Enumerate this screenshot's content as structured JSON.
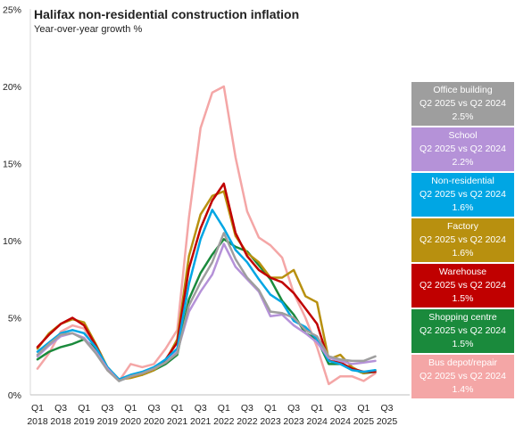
{
  "chart_data": {
    "type": "line",
    "title": "Halifax non-residential  construction inflation",
    "subtitle": "Year-over-year  growth %",
    "ylim": [
      0,
      25
    ],
    "yticks": [
      {
        "value": 0,
        "label": "0%"
      },
      {
        "value": 5,
        "label": "5%"
      },
      {
        "value": 10,
        "label": "10%"
      },
      {
        "value": 15,
        "label": "15%"
      },
      {
        "value": 20,
        "label": "20%"
      },
      {
        "value": 25,
        "label": "25%"
      }
    ],
    "xticks": [
      {
        "index": 0,
        "quarter": "Q1",
        "year": "2018"
      },
      {
        "index": 2,
        "quarter": "Q3",
        "year": "2018"
      },
      {
        "index": 4,
        "quarter": "Q1",
        "year": "2019"
      },
      {
        "index": 6,
        "quarter": "Q3",
        "year": "2019"
      },
      {
        "index": 8,
        "quarter": "Q1",
        "year": "2020"
      },
      {
        "index": 10,
        "quarter": "Q3",
        "year": "2020"
      },
      {
        "index": 12,
        "quarter": "Q1",
        "year": "2021"
      },
      {
        "index": 14,
        "quarter": "Q3",
        "year": "2021"
      },
      {
        "index": 16,
        "quarter": "Q1",
        "year": "2022"
      },
      {
        "index": 18,
        "quarter": "Q3",
        "year": "2022"
      },
      {
        "index": 20,
        "quarter": "Q1",
        "year": "2023"
      },
      {
        "index": 22,
        "quarter": "Q3",
        "year": "2023"
      },
      {
        "index": 24,
        "quarter": "Q1",
        "year": "2024"
      },
      {
        "index": 26,
        "quarter": "Q3",
        "year": "2024"
      },
      {
        "index": 28,
        "quarter": "Q1",
        "year": "2025"
      },
      {
        "index": 30,
        "quarter": "Q3",
        "year": "2025"
      }
    ],
    "x": [
      "Q1 2018",
      "Q2 2018",
      "Q3 2018",
      "Q4 2018",
      "Q1 2019",
      "Q2 2019",
      "Q3 2019",
      "Q4 2019",
      "Q1 2020",
      "Q2 2020",
      "Q3 2020",
      "Q4 2020",
      "Q1 2021",
      "Q2 2021",
      "Q3 2021",
      "Q4 2021",
      "Q1 2022",
      "Q2 2022",
      "Q3 2022",
      "Q4 2022",
      "Q1 2023",
      "Q2 2023",
      "Q3 2023",
      "Q4 2023",
      "Q1 2024",
      "Q2 2024",
      "Q3 2024",
      "Q4 2024",
      "Q1 2025",
      "Q2 2025"
    ],
    "grid": false,
    "legend_position": "right",
    "series": [
      {
        "name": "Office building",
        "legend_line2": "Q2 2025 vs Q2 2024",
        "legend_value": "2.5%",
        "color": "#9e9e9e",
        "values": [
          2.6,
          3.3,
          3.9,
          4.0,
          3.6,
          2.7,
          1.6,
          0.9,
          1.2,
          1.4,
          1.7,
          2.1,
          2.7,
          5.8,
          7.3,
          8.6,
          10.5,
          8.8,
          7.6,
          6.8,
          5.4,
          5.3,
          5.0,
          4.2,
          3.8,
          2.5,
          2.3,
          2.2,
          2.2,
          2.5
        ]
      },
      {
        "name": "School",
        "legend_line2": "Q2 2025 vs Q2 2024",
        "legend_value": "2.2%",
        "color": "#b592d8",
        "values": [
          2.5,
          3.2,
          3.8,
          4.0,
          3.7,
          2.8,
          1.7,
          0.9,
          1.2,
          1.4,
          1.7,
          2.1,
          2.8,
          5.4,
          6.7,
          7.8,
          9.8,
          8.3,
          7.5,
          6.7,
          5.1,
          5.2,
          4.5,
          4.0,
          3.4,
          2.4,
          2.2,
          2.0,
          2.1,
          2.2
        ]
      },
      {
        "name": "Non-residential",
        "legend_line2": "Q2 2025 vs Q2 2024",
        "legend_value": "1.6%",
        "color": "#00a6e4",
        "values": [
          2.8,
          3.4,
          4.0,
          4.2,
          4.0,
          3.1,
          1.8,
          1.0,
          1.3,
          1.5,
          1.8,
          2.3,
          3.0,
          7.2,
          10.1,
          12.0,
          10.8,
          9.4,
          8.6,
          7.5,
          6.5,
          6.0,
          4.8,
          4.4,
          3.6,
          2.2,
          2.0,
          1.6,
          1.5,
          1.6
        ]
      },
      {
        "name": "Factory",
        "legend_line2": "Q2 2025 vs Q2 2024",
        "legend_value": "1.6%",
        "color": "#b8900f",
        "values": [
          3.0,
          4.0,
          4.6,
          4.9,
          4.7,
          3.3,
          1.8,
          1.0,
          1.1,
          1.3,
          1.6,
          2.2,
          3.6,
          9.0,
          11.7,
          12.9,
          13.2,
          10.3,
          9.2,
          8.6,
          7.6,
          7.6,
          8.1,
          6.4,
          6.0,
          2.3,
          2.6,
          1.8,
          1.4,
          1.6
        ]
      },
      {
        "name": "Warehouse",
        "legend_line2": "Q2 2025 vs Q2 2024",
        "legend_value": "1.5%",
        "color": "#c00000",
        "values": [
          3.1,
          3.9,
          4.6,
          5.0,
          4.5,
          3.2,
          1.7,
          1.0,
          1.2,
          1.4,
          1.7,
          2.3,
          3.4,
          8.2,
          10.8,
          12.6,
          13.7,
          10.5,
          9.0,
          8.1,
          7.6,
          7.3,
          6.6,
          5.6,
          4.6,
          2.2,
          2.1,
          1.7,
          1.5,
          1.5
        ]
      },
      {
        "name": "Shopping centre",
        "legend_line2": "Q2 2025 vs Q2 2024",
        "legend_value": "1.5%",
        "color": "#1a8a3c",
        "values": [
          2.3,
          2.8,
          3.1,
          3.3,
          3.6,
          3.0,
          1.8,
          0.9,
          1.2,
          1.3,
          1.6,
          2.0,
          2.6,
          6.2,
          7.9,
          9.1,
          10.1,
          9.6,
          9.3,
          8.4,
          7.5,
          6.1,
          5.2,
          4.0,
          3.6,
          2.0,
          2.0,
          1.7,
          1.4,
          1.5
        ]
      },
      {
        "name": "Bus depot/repair",
        "legend_line2": "Q2 2025 vs Q2 2024",
        "legend_value": "1.4%",
        "color": "#f4a6a6",
        "values": [
          1.7,
          2.7,
          4.1,
          4.5,
          4.3,
          3.1,
          1.6,
          0.9,
          2.0,
          1.8,
          2.0,
          3.0,
          4.2,
          11.5,
          17.3,
          19.6,
          20.0,
          15.4,
          11.9,
          10.2,
          9.7,
          8.9,
          6.6,
          5.0,
          3.1,
          0.7,
          1.2,
          1.2,
          0.9,
          1.4
        ]
      }
    ]
  }
}
